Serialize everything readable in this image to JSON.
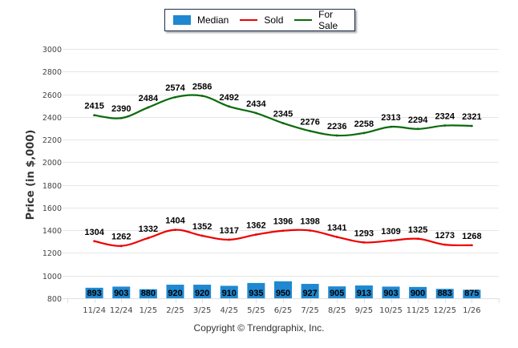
{
  "legend": {
    "items": [
      {
        "label": "Median",
        "color": "#1f88d0",
        "kind": "bar"
      },
      {
        "label": "Sold",
        "color": "#ee0000",
        "kind": "line"
      },
      {
        "label": "For Sale",
        "color": "#0b6a0b",
        "kind": "line"
      }
    ]
  },
  "copyright": "Copyright © Trendgraphix, Inc.",
  "chart_data": {
    "type": "bar+line",
    "title": "",
    "xlabel": "",
    "ylabel": "Price (in $,000)",
    "ylim": [
      800,
      3000
    ],
    "yticks": [
      800,
      1000,
      1200,
      1400,
      1600,
      1800,
      2000,
      2200,
      2400,
      2600,
      2800,
      3000
    ],
    "grid": true,
    "legend_position": "top-center",
    "categories": [
      "11/24",
      "12/24",
      "1/25",
      "2/25",
      "3/25",
      "4/25",
      "5/25",
      "6/25",
      "7/25",
      "8/25",
      "9/25",
      "10/25",
      "11/25",
      "12/25",
      "1/26"
    ],
    "series": [
      {
        "name": "Median",
        "type": "bar",
        "color": "#1f88d0",
        "values": [
          893,
          903,
          880,
          920,
          920,
          910,
          935,
          950,
          927,
          905,
          913,
          903,
          900,
          883,
          875
        ]
      },
      {
        "name": "Sold",
        "type": "line",
        "color": "#ee0000",
        "values": [
          1304,
          1262,
          1332,
          1404,
          1352,
          1317,
          1362,
          1396,
          1398,
          1341,
          1293,
          1309,
          1325,
          1273,
          1268
        ]
      },
      {
        "name": "For Sale",
        "type": "line",
        "color": "#0b6a0b",
        "values": [
          2415,
          2390,
          2484,
          2574,
          2586,
          2492,
          2434,
          2345,
          2276,
          2236,
          2258,
          2313,
          2294,
          2324,
          2321
        ]
      }
    ]
  }
}
